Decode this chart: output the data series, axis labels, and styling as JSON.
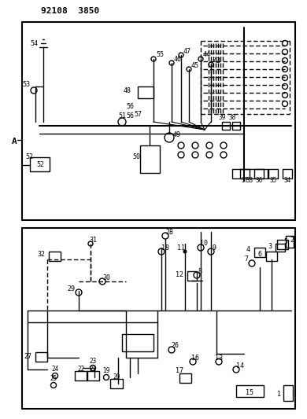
{
  "title": "92108  3850",
  "bg_color": "#ffffff",
  "line_color": "#000000",
  "figsize": [
    3.9,
    5.33
  ],
  "dpi": 100
}
